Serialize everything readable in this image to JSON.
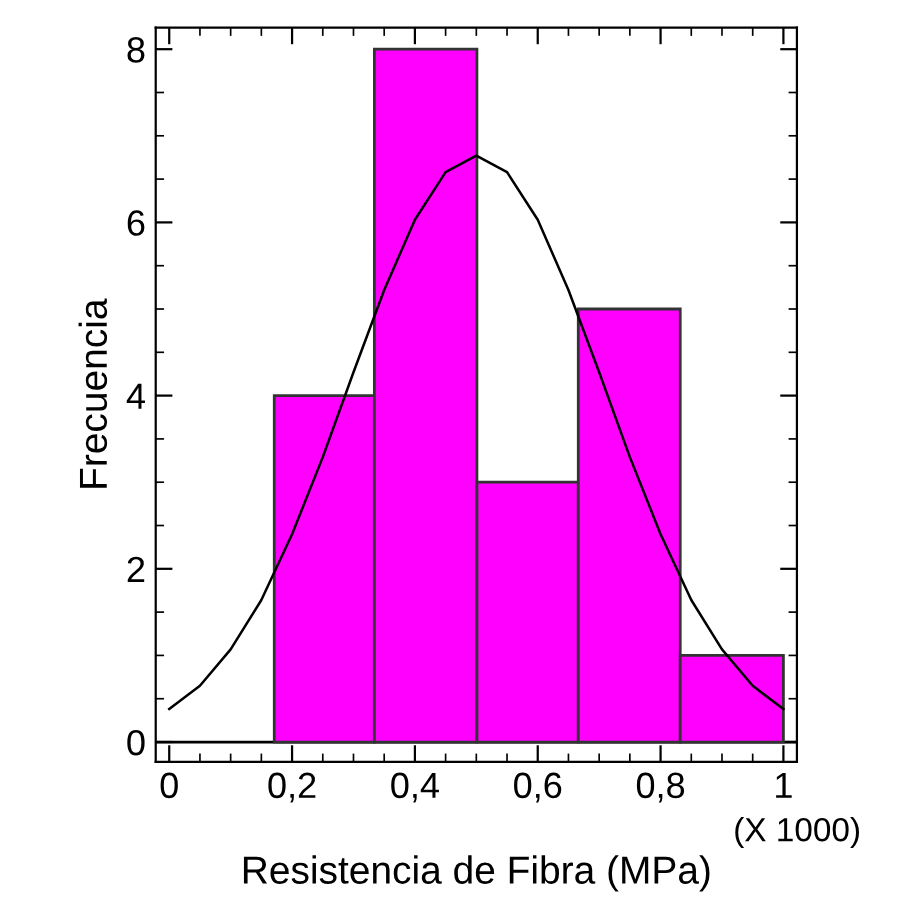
{
  "chart_data": {
    "type": "histogram",
    "xlabel": "Resistencia de Fibra (MPa)",
    "ylabel": "Frecuencia",
    "annotations": [
      "(X 1000)"
    ],
    "bins": [
      0.171,
      0.334,
      0.501,
      0.666,
      0.832,
      1.0
    ],
    "values": [
      4,
      8,
      3,
      5,
      1
    ],
    "color": "#ff00ff",
    "series": [
      {
        "type": "line",
        "color": "#000000",
        "x": [
          0,
          0.05,
          0.1,
          0.15,
          0.2,
          0.25,
          0.3,
          0.35,
          0.4,
          0.45,
          0.5,
          0.55,
          0.6,
          0.65,
          0.7,
          0.75,
          0.8,
          0.85,
          0.9,
          0.95,
          1.0
        ],
        "values": [
          0.38,
          0.65,
          1.07,
          1.64,
          2.4,
          3.29,
          4.27,
          5.22,
          6.03,
          6.58,
          6.77,
          6.58,
          6.03,
          5.22,
          4.27,
          3.29,
          2.4,
          1.64,
          1.07,
          0.65,
          0.38
        ]
      }
    ],
    "xlim": [
      -0.022,
      1.022
    ],
    "ylim": [
      -0.23,
      8.25
    ],
    "xticks": [
      {
        "value": 0,
        "label": "0"
      },
      {
        "value": 0.2,
        "label": "0,2"
      },
      {
        "value": 0.4,
        "label": "0,4"
      },
      {
        "value": 0.6,
        "label": "0,6"
      },
      {
        "value": 0.8,
        "label": "0,8"
      },
      {
        "value": 1,
        "label": "1"
      }
    ],
    "yticks": [
      0,
      2,
      4,
      6,
      8
    ],
    "ref_lines": [
      {
        "axis": "y",
        "value": 0,
        "color": "#000000"
      }
    ],
    "grid": false,
    "legend": false
  }
}
